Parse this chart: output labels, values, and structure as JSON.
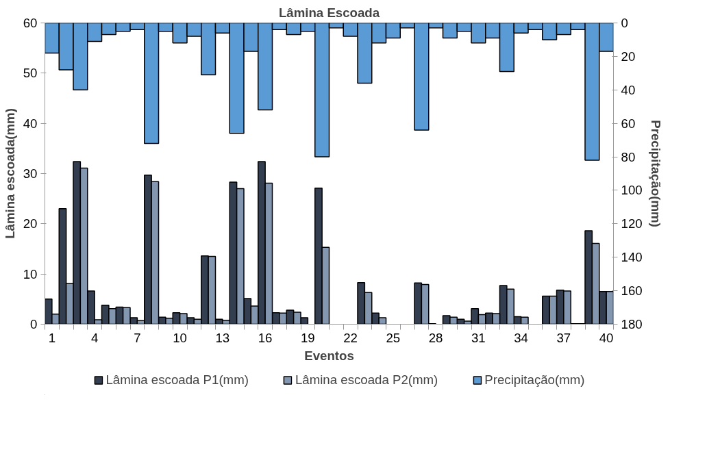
{
  "chart_data": {
    "type": "bar",
    "title": "Lâmina Escoada",
    "xlabel": "Eventos",
    "ylabel": "Lâmina escoada(mm)",
    "y2label": "Precipitação(mm)",
    "categories": [
      "1",
      null,
      null,
      "4",
      null,
      null,
      "7",
      null,
      null,
      "10",
      null,
      null,
      "13",
      null,
      null,
      "16",
      null,
      null,
      "19",
      null,
      null,
      "22",
      null,
      null,
      "25",
      null,
      null,
      "28",
      null,
      null,
      "31",
      null,
      null,
      "34",
      null,
      null,
      "37",
      null,
      null,
      "40"
    ],
    "series": [
      {
        "name": "Lâmina escoada P1(mm)",
        "color": "#333f50",
        "values": [
          5.0,
          23.0,
          32.4,
          6.6,
          3.8,
          3.4,
          1.3,
          29.7,
          1.4,
          2.3,
          1.3,
          13.6,
          1.0,
          28.3,
          5.1,
          32.4,
          2.3,
          2.8,
          1.3,
          27.1,
          0,
          0,
          8.3,
          2.2,
          0,
          0,
          8.2,
          0.1,
          1.7,
          1.0,
          3.1,
          2.2,
          7.7,
          1.5,
          0,
          5.6,
          6.8,
          0.1,
          18.6,
          6.5
        ]
      },
      {
        "name": "Lâmina escoada P2(mm)",
        "color": "#8497b0",
        "values": [
          2.0,
          8.1,
          31.1,
          0.9,
          3.1,
          3.3,
          0.7,
          28.4,
          1.2,
          2.1,
          1.0,
          13.5,
          0.8,
          27.0,
          3.6,
          28.1,
          2.2,
          2.4,
          0,
          15.3,
          0,
          0,
          6.3,
          1.3,
          0,
          0,
          7.9,
          0,
          1.4,
          0.6,
          1.9,
          2.1,
          7.0,
          1.4,
          0,
          5.6,
          6.6,
          0.1,
          16.1,
          6.5
        ]
      },
      {
        "name": "Precipitação(mm)",
        "color": "#5b9bd5",
        "axis": "y2",
        "values": [
          18,
          28,
          40,
          11,
          7,
          5,
          4,
          72,
          5,
          12,
          8,
          31,
          6,
          66,
          17,
          52,
          4,
          7,
          5,
          80,
          3,
          8,
          36,
          12,
          9,
          3,
          64,
          3,
          9,
          5,
          12,
          9,
          29,
          6,
          4,
          10,
          7,
          4,
          82,
          17
        ]
      }
    ],
    "ylim": [
      0,
      60
    ],
    "yticks": [
      0,
      10,
      20,
      30,
      40,
      50,
      60
    ],
    "y2lim": [
      180,
      0
    ],
    "y2ticks": [
      0,
      20,
      40,
      60,
      80,
      100,
      120,
      140,
      160,
      180
    ],
    "grid": false,
    "legend": "bottom"
  }
}
